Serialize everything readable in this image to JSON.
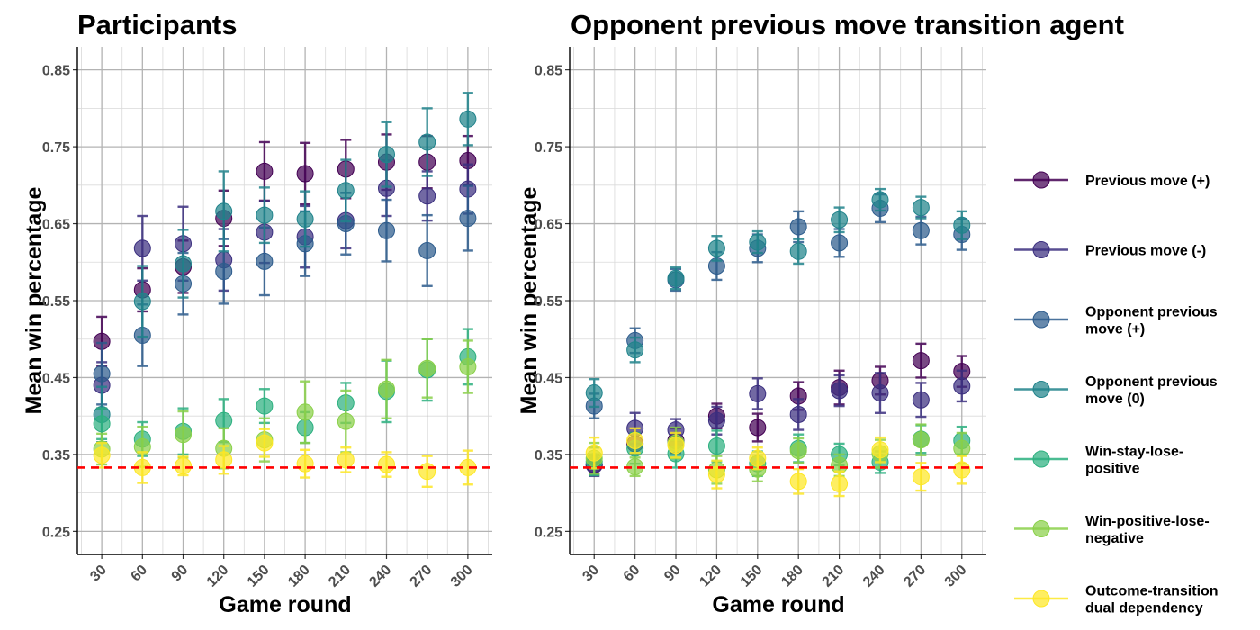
{
  "colors": {
    "series": [
      "#440154",
      "#3b2f7f",
      "#2c5b8c",
      "#20838b",
      "#2cb07f",
      "#8ad049",
      "#fde725"
    ],
    "chance_line": "#ff0000",
    "grid": "#bfbfbf"
  },
  "legend": {
    "items": [
      [
        "Previous move (+)"
      ],
      [
        "Previous move (-)"
      ],
      [
        "Opponent previous",
        "move (+)"
      ],
      [
        "Opponent previous",
        "move (0)"
      ],
      [
        "Win-stay-lose-",
        "positive"
      ],
      [
        "Win-positive-lose-",
        "negative"
      ],
      [
        "Outcome-transition",
        "dual dependency"
      ]
    ]
  },
  "chart_data": [
    {
      "type": "scatter",
      "title": "Participants",
      "xlabel": "Game round",
      "ylabel": "Mean win percentage",
      "categories": [
        "30",
        "60",
        "90",
        "120",
        "150",
        "180",
        "210",
        "240",
        "270",
        "300"
      ],
      "yticks": [
        "0.25",
        "0.35",
        "0.45",
        "0.55",
        "0.65",
        "0.75",
        "0.85"
      ],
      "ylim": [
        0.22,
        0.88
      ],
      "chance_level": 0.333,
      "grid": true,
      "series": [
        {
          "name": "Previous move (+)",
          "values": [
            0.497,
            0.564,
            0.594,
            0.657,
            0.718,
            0.715,
            0.721,
            0.73,
            0.73,
            0.732
          ],
          "errors": [
            0.032,
            0.028,
            0.034,
            0.036,
            0.038,
            0.04,
            0.038,
            0.036,
            0.034,
            0.032
          ]
        },
        {
          "name": "Previous move (-)",
          "values": [
            0.44,
            0.618,
            0.624,
            0.603,
            0.639,
            0.633,
            0.654,
            0.696,
            0.686,
            0.695
          ],
          "errors": [
            0.03,
            0.042,
            0.048,
            0.04,
            0.04,
            0.04,
            0.036,
            0.036,
            0.032,
            0.032
          ]
        },
        {
          "name": "Opponent previous move (+)",
          "values": [
            0.455,
            0.505,
            0.572,
            0.588,
            0.601,
            0.624,
            0.65,
            0.641,
            0.615,
            0.657
          ],
          "errors": [
            0.04,
            0.04,
            0.04,
            0.042,
            0.044,
            0.042,
            0.04,
            0.04,
            0.046,
            0.042
          ]
        },
        {
          "name": "Opponent previous move (0)",
          "values": [
            0.402,
            0.549,
            0.598,
            0.666,
            0.661,
            0.656,
            0.693,
            0.74,
            0.756,
            0.786
          ],
          "errors": [
            0.036,
            0.046,
            0.044,
            0.052,
            0.036,
            0.036,
            0.04,
            0.042,
            0.044,
            0.034
          ]
        },
        {
          "name": "Win-stay-lose-positive",
          "values": [
            0.39,
            0.37,
            0.38,
            0.394,
            0.413,
            0.385,
            0.417,
            0.432,
            0.46,
            0.477
          ],
          "errors": [
            0.02,
            0.022,
            0.03,
            0.028,
            0.022,
            0.02,
            0.026,
            0.04,
            0.04,
            0.036
          ]
        },
        {
          "name": "Win-positive-lose-negative",
          "values": [
            0.357,
            0.36,
            0.376,
            0.358,
            0.369,
            0.405,
            0.393,
            0.435,
            0.462,
            0.464
          ],
          "errors": [
            0.02,
            0.026,
            0.03,
            0.026,
            0.028,
            0.04,
            0.04,
            0.038,
            0.038,
            0.034
          ]
        },
        {
          "name": "Outcome-transition dual dependency",
          "values": [
            0.349,
            0.333,
            0.335,
            0.343,
            0.365,
            0.338,
            0.343,
            0.337,
            0.328,
            0.333
          ],
          "errors": [
            0.016,
            0.02,
            0.012,
            0.018,
            0.018,
            0.018,
            0.016,
            0.016,
            0.02,
            0.022
          ]
        }
      ]
    },
    {
      "type": "scatter",
      "title": "Opponent previous move transition agent",
      "xlabel": "Game round",
      "ylabel": "Mean win percentage",
      "categories": [
        "30",
        "60",
        "90",
        "120",
        "150",
        "180",
        "210",
        "240",
        "270",
        "300"
      ],
      "yticks": [
        "0.25",
        "0.35",
        "0.45",
        "0.55",
        "0.65",
        "0.75",
        "0.85"
      ],
      "ylim": [
        0.22,
        0.88
      ],
      "chance_level": 0.333,
      "grid": true,
      "series": [
        {
          "name": "Previous move (+)",
          "values": [
            0.337,
            0.364,
            0.368,
            0.4,
            0.385,
            0.426,
            0.437,
            0.446,
            0.472,
            0.458
          ],
          "errors": [
            0.012,
            0.014,
            0.016,
            0.016,
            0.018,
            0.018,
            0.022,
            0.018,
            0.022,
            0.02
          ]
        },
        {
          "name": "Previous move (-)",
          "values": [
            0.336,
            0.384,
            0.382,
            0.394,
            0.429,
            0.402,
            0.433,
            0.43,
            0.421,
            0.439
          ],
          "errors": [
            0.014,
            0.02,
            0.014,
            0.018,
            0.02,
            0.02,
            0.02,
            0.026,
            0.022,
            0.02
          ]
        },
        {
          "name": "Opponent previous move (+)",
          "values": [
            0.413,
            0.498,
            0.577,
            0.595,
            0.618,
            0.646,
            0.625,
            0.67,
            0.641,
            0.636
          ],
          "errors": [
            0.016,
            0.016,
            0.014,
            0.018,
            0.018,
            0.02,
            0.018,
            0.018,
            0.018,
            0.02
          ]
        },
        {
          "name": "Opponent previous move (0)",
          "values": [
            0.43,
            0.486,
            0.579,
            0.618,
            0.626,
            0.614,
            0.655,
            0.681,
            0.671,
            0.648
          ],
          "errors": [
            0.018,
            0.016,
            0.014,
            0.016,
            0.014,
            0.016,
            0.016,
            0.014,
            0.014,
            0.018
          ]
        },
        {
          "name": "Win-stay-lose-positive",
          "values": [
            0.341,
            0.358,
            0.351,
            0.361,
            0.338,
            0.358,
            0.35,
            0.34,
            0.37,
            0.368
          ],
          "errors": [
            0.018,
            0.02,
            0.018,
            0.02,
            0.016,
            0.018,
            0.014,
            0.014,
            0.018,
            0.018
          ]
        },
        {
          "name": "Win-positive-lose-negative",
          "values": [
            0.345,
            0.334,
            0.365,
            0.33,
            0.331,
            0.355,
            0.336,
            0.351,
            0.369,
            0.358
          ],
          "errors": [
            0.02,
            0.012,
            0.02,
            0.018,
            0.016,
            0.016,
            0.014,
            0.018,
            0.02,
            0.02
          ]
        },
        {
          "name": "Outcome-transition dual dependency",
          "values": [
            0.352,
            0.368,
            0.362,
            0.324,
            0.345,
            0.315,
            0.312,
            0.356,
            0.321,
            0.33
          ],
          "errors": [
            0.02,
            0.016,
            0.016,
            0.018,
            0.014,
            0.016,
            0.016,
            0.016,
            0.018,
            0.018
          ]
        }
      ]
    }
  ]
}
